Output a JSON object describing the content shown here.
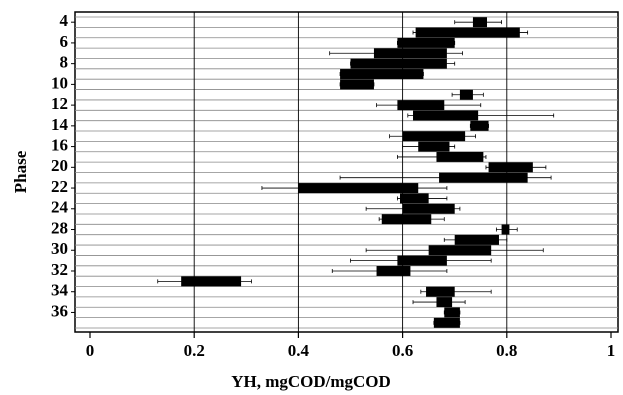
{
  "chart_data": {
    "type": "floating_bar",
    "xlabel": "YH, mgCOD/mgCOD",
    "ylabel": "Phase",
    "categories": [
      "4",
      null,
      "6",
      null,
      "8",
      null,
      "10",
      null,
      "12",
      null,
      "14",
      null,
      "16",
      null,
      "20",
      null,
      "22",
      null,
      "24",
      null,
      "28",
      null,
      "30",
      null,
      "32",
      null,
      "34",
      null,
      "36",
      null
    ],
    "lows": [
      0.735,
      0.625,
      0.59,
      0.545,
      0.5,
      0.48,
      0.48,
      0.71,
      0.59,
      0.62,
      0.73,
      0.6,
      0.63,
      0.665,
      0.765,
      0.67,
      0.4,
      0.595,
      0.6,
      0.56,
      0.79,
      0.7,
      0.65,
      0.59,
      0.55,
      0.175,
      0.645,
      0.665,
      0.68,
      0.66
    ],
    "highs": [
      0.762,
      0.825,
      0.7,
      0.685,
      0.685,
      0.64,
      0.545,
      0.735,
      0.68,
      0.745,
      0.765,
      0.72,
      0.69,
      0.755,
      0.85,
      0.84,
      0.63,
      0.65,
      0.7,
      0.655,
      0.805,
      0.785,
      0.77,
      0.685,
      0.615,
      0.29,
      0.7,
      0.695,
      0.71,
      0.71
    ],
    "whisker_lows": [
      0.7,
      0.62,
      0.59,
      0.46,
      0.5,
      0.48,
      0.48,
      0.695,
      0.55,
      0.61,
      0.73,
      0.575,
      0.6,
      0.59,
      0.76,
      0.48,
      0.33,
      0.59,
      0.53,
      0.555,
      0.78,
      0.68,
      0.53,
      0.5,
      0.465,
      0.13,
      0.635,
      0.62,
      0.68,
      0.66
    ],
    "whisker_highs": [
      0.79,
      0.84,
      0.7,
      0.715,
      0.7,
      0.64,
      0.545,
      0.755,
      0.75,
      0.89,
      0.765,
      0.74,
      0.7,
      0.76,
      0.875,
      0.885,
      0.685,
      0.685,
      0.71,
      0.68,
      0.82,
      0.8,
      0.87,
      0.77,
      0.685,
      0.31,
      0.77,
      0.72,
      0.71,
      0.71
    ],
    "color": "#000000",
    "xlim": [
      0,
      1
    ],
    "xticks": [
      0,
      0.2,
      0.4,
      0.6,
      0.8,
      1
    ],
    "grid": true
  }
}
